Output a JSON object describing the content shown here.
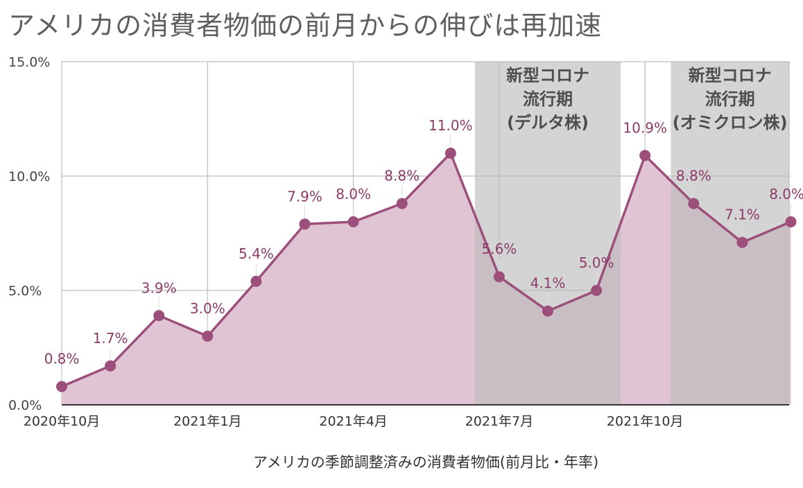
{
  "title": "アメリカの消費者物価の前月からの伸びは再加速",
  "chart_data": {
    "type": "area",
    "title": "アメリカの消費者物価の前月からの伸びは再加速",
    "xlabel": "アメリカの季節調整済みの消費者物価(前月比・年率)",
    "ylabel": "",
    "ylim": [
      0,
      15
    ],
    "y_ticks": [
      "0.0%",
      "5.0%",
      "10.0%",
      "15.0%"
    ],
    "x_ticks": [
      "2020年10月",
      "2021年1月",
      "2021年4月",
      "2021年7月",
      "2021年10月"
    ],
    "categories": [
      "2020-10",
      "2020-11",
      "2020-12",
      "2021-01",
      "2021-02",
      "2021-03",
      "2021-04",
      "2021-05",
      "2021-06",
      "2021-07",
      "2021-08",
      "2021-09",
      "2021-10",
      "2021-11",
      "2021-12",
      "2022-01"
    ],
    "values": [
      0.8,
      1.7,
      3.9,
      3.0,
      5.4,
      7.9,
      8.0,
      8.8,
      11.0,
      5.6,
      4.1,
      5.0,
      10.9,
      8.8,
      7.1,
      8.0
    ],
    "data_labels": [
      "0.8%",
      "1.7%",
      "3.9%",
      "3.0%",
      "5.4%",
      "7.9%",
      "8.0%",
      "8.8%",
      "11.0%",
      "5.6%",
      "4.1%",
      "5.0%",
      "10.9%",
      "8.8%",
      "7.1%",
      "8.0%"
    ],
    "shaded_periods": [
      {
        "label_lines": [
          "新型コロナ",
          "流行期",
          "(デルタ株)"
        ]
      },
      {
        "label_lines": [
          "新型コロナ",
          "流行期",
          "(オミクロン株)"
        ]
      }
    ],
    "grid": true,
    "colors": {
      "line": "#9b4f7a",
      "fill": "#e0c4d3",
      "shade": "#b9b9b9",
      "label": "#8a3b67",
      "grid": "#c8c8c8"
    }
  }
}
